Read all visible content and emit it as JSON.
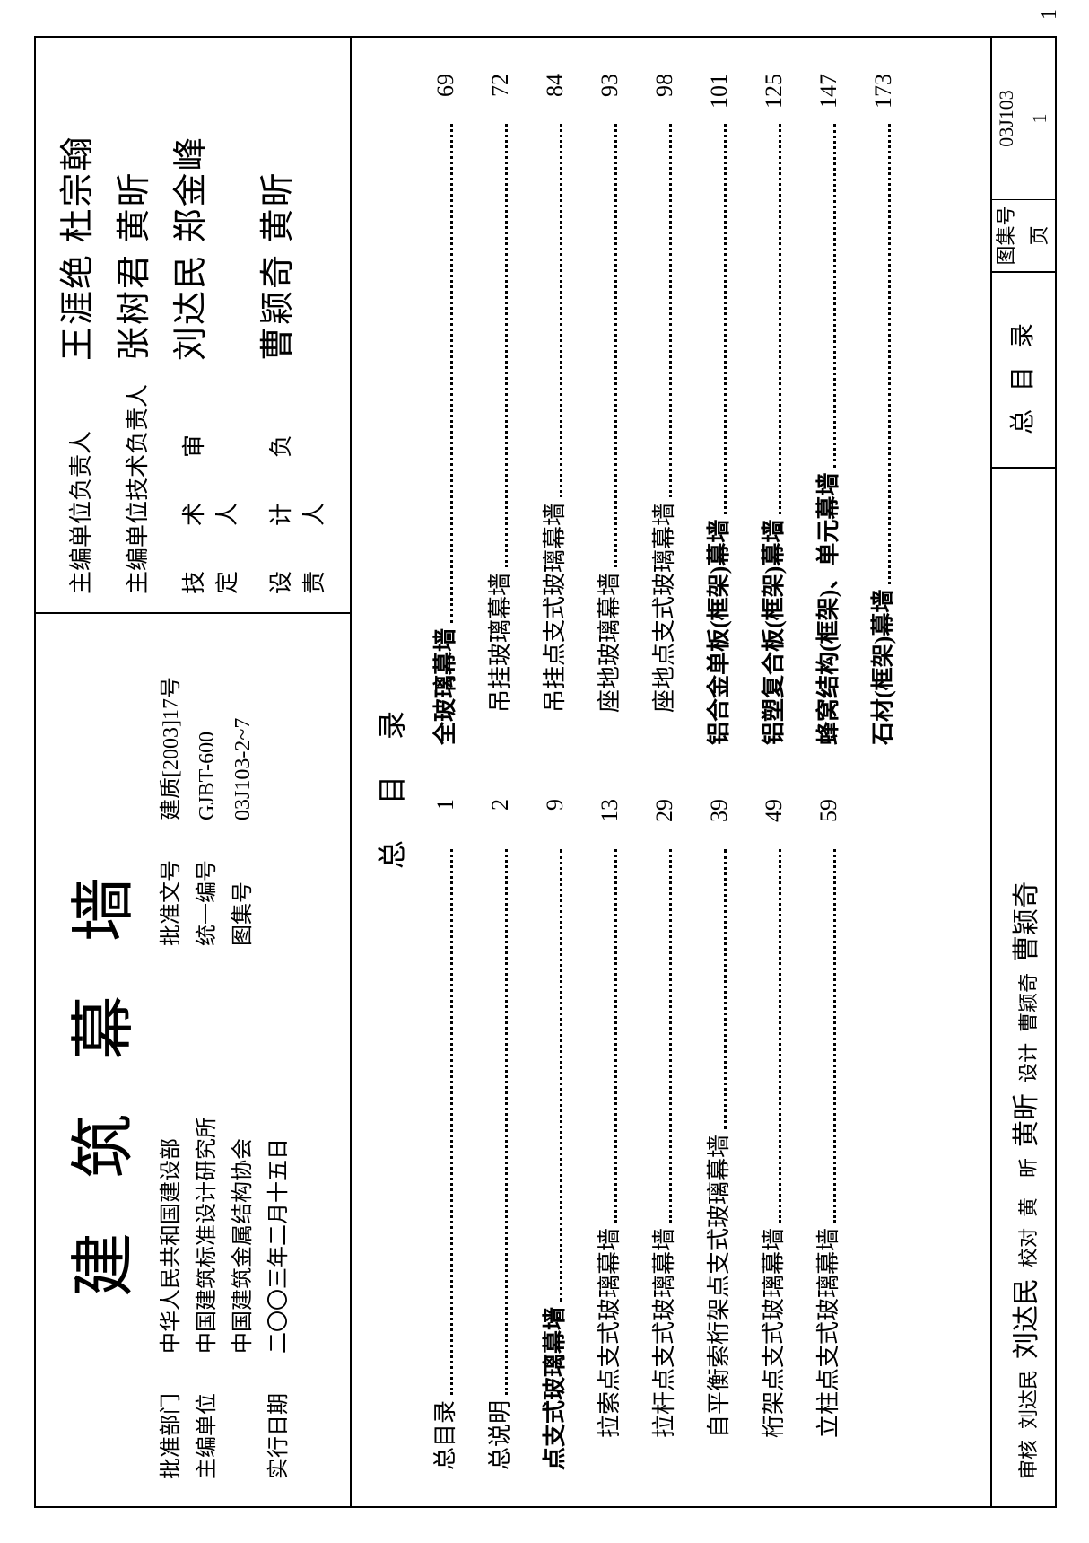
{
  "document": {
    "main_title": "建筑幕墙",
    "approval_dept_label": "批准部门",
    "approval_dept": "中华人民共和国建设部",
    "editor_unit_label": "主编单位",
    "editor_unit_line1": "中国建筑标准设计研究所",
    "editor_unit_line2": "中国建筑金属结构协会",
    "effective_date_label": "实行日期",
    "effective_date": "二〇〇三年二月十五日",
    "approval_doc_label": "批准文号",
    "approval_doc": "建质[2003]17号",
    "unified_no_label": "统一编号",
    "unified_no": "GJBT-600",
    "atlas_no_label": "图集号",
    "atlas_no": "03J103-2~7"
  },
  "personnel": {
    "unit_leader_label": "主编单位负责人",
    "unit_leader_sig": "王涯绝 杜宗翰",
    "tech_leader_label": "主编单位技术负责人",
    "tech_leader_sig": "张树君 黄昕",
    "tech_review_label": "技术审定人",
    "tech_review_sig": "刘达民 郑金峰",
    "design_leader_label": "设计负责人",
    "design_leader_sig": "曹颖奇 黄昕"
  },
  "toc": {
    "heading": "总目录",
    "left": [
      {
        "label": "总目录",
        "page": "1",
        "bold": false,
        "indent": false
      },
      {
        "label": "总说明",
        "page": "2",
        "bold": false,
        "indent": false
      },
      {
        "label": "点支式玻璃幕墙",
        "page": "9",
        "bold": true,
        "indent": false
      },
      {
        "label": "拉索点支式玻璃幕墙",
        "page": "13",
        "bold": false,
        "indent": true
      },
      {
        "label": "拉杆点支式玻璃幕墙",
        "page": "29",
        "bold": false,
        "indent": true
      },
      {
        "label": "自平衡索桁架点支式玻璃幕墙",
        "page": "39",
        "bold": false,
        "indent": true
      },
      {
        "label": "桁架点支式玻璃幕墙",
        "page": "49",
        "bold": false,
        "indent": true
      },
      {
        "label": "立柱点支式玻璃幕墙",
        "page": "59",
        "bold": false,
        "indent": true
      }
    ],
    "right": [
      {
        "label": "全玻璃幕墙",
        "page": "69",
        "bold": true,
        "indent": false
      },
      {
        "label": "吊挂玻璃幕墙",
        "page": "72",
        "bold": false,
        "indent": true
      },
      {
        "label": "吊挂点支式玻璃幕墙",
        "page": "84",
        "bold": false,
        "indent": true
      },
      {
        "label": "座地玻璃幕墙",
        "page": "93",
        "bold": false,
        "indent": true
      },
      {
        "label": "座地点支式玻璃幕墙",
        "page": "98",
        "bold": false,
        "indent": true
      },
      {
        "label": "铝合金单板(框架)幕墙",
        "page": "101",
        "bold": true,
        "indent": false
      },
      {
        "label": "铝塑复合板(框架)幕墙",
        "page": "125",
        "bold": true,
        "indent": false
      },
      {
        "label": "蜂窝结构(框架)、单元幕墙",
        "page": "147",
        "bold": true,
        "indent": false
      },
      {
        "label": "石材(框架)幕墙",
        "page": "173",
        "bold": true,
        "indent": false
      }
    ]
  },
  "footer": {
    "review_label": "审核",
    "review_name": "刘达民",
    "review_sig": "刘达民",
    "check_label": "校对",
    "check_name": "黄　昕",
    "check_sig": "黄昕",
    "design_label": "设计",
    "design_name": "曹颖奇",
    "design_sig": "曹颖奇",
    "center_title": "总目录",
    "atlas_label": "图集号",
    "atlas_value": "03J103",
    "page_label": "页",
    "page_value": "1",
    "outer_page": "1"
  }
}
